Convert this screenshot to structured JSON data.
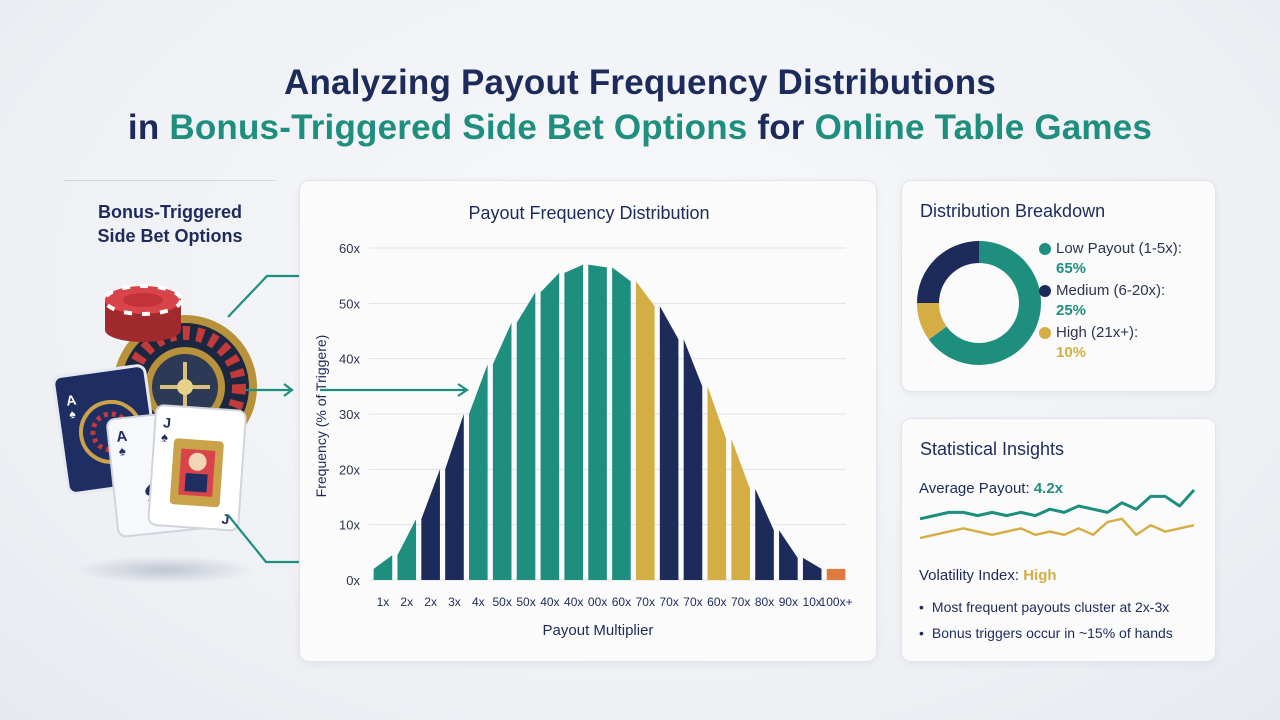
{
  "header": {
    "line1": "Analyzing Payout Frequency Distributions",
    "line2_pre": "in ",
    "line2_accent1": "Bonus-Triggered Side Bet Options",
    "line2_mid": " for ",
    "line2_accent2": "Online Table Games"
  },
  "left_panel": {
    "label_line1": "Bonus-Triggered",
    "label_line2": "Side Bet Options"
  },
  "colors": {
    "teal": "#1e8f7e",
    "navy": "#1c2b5a",
    "gold": "#d4ad45",
    "orange": "#e07a3f"
  },
  "chart_data": [
    {
      "type": "bar",
      "title": "Payout Frequency Distribution",
      "xlabel": "Payout Multiplier",
      "ylabel": "Frequency (% of Triggere)",
      "ylim": [
        0,
        60
      ],
      "yticks": [
        "0x",
        "10x",
        "20x",
        "30x",
        "40x",
        "50x",
        "60x"
      ],
      "grid": true,
      "categories": [
        "1x",
        "2x",
        "2x",
        "3x",
        "4x",
        "50x",
        "50x",
        "40x",
        "40x",
        "00x",
        "60x",
        "70x",
        "70x",
        "70x",
        "60x",
        "70x",
        "80x",
        "90x",
        "10x",
        "100x+"
      ],
      "values": [
        2,
        7,
        15,
        25,
        35,
        43,
        50,
        54,
        57,
        57,
        56,
        52,
        47,
        40,
        30,
        21,
        12,
        6,
        2,
        2
      ],
      "colors": [
        "teal",
        "teal",
        "navy",
        "navy",
        "teal",
        "teal",
        "teal",
        "teal",
        "teal",
        "teal",
        "teal",
        "gold",
        "navy",
        "navy",
        "gold",
        "gold",
        "navy",
        "navy",
        "navy",
        "orange"
      ]
    },
    {
      "type": "pie",
      "title": "Distribution Breakdown",
      "donut": true,
      "labels": [
        "Low Payout (1-5x):",
        "Medium (6-20x):",
        "High (21x+):"
      ],
      "values": [
        65,
        25,
        10
      ],
      "pct_labels": [
        "65%",
        "25%",
        "10%"
      ],
      "colors": [
        "teal",
        "navy",
        "gold"
      ]
    },
    {
      "type": "line",
      "title": "Statistical Insights",
      "series": [
        {
          "color": "teal",
          "values": [
            10,
            11,
            12,
            12,
            11,
            12,
            11,
            12,
            11,
            13,
            12,
            14,
            13,
            12,
            15,
            13,
            17,
            17,
            14,
            19
          ]
        },
        {
          "color": "gold",
          "values": [
            4,
            5,
            6,
            7,
            6,
            5,
            6,
            7,
            5,
            6,
            5,
            7,
            5,
            9,
            10,
            5,
            8,
            6,
            7,
            8
          ]
        }
      ]
    }
  ],
  "insights": {
    "avg_label": "Average Payout: ",
    "avg_value": "4.2x",
    "vol_label": "Volatility Index: ",
    "vol_value": "High",
    "bullets": [
      "Most frequent payouts cluster at 2x-3x",
      "Bonus triggers occur in ~15% of hands"
    ]
  }
}
